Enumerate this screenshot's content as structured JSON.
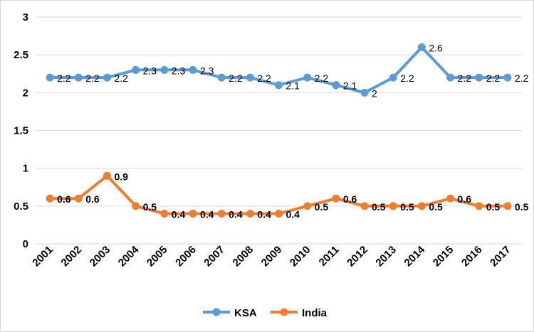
{
  "chart_data": {
    "type": "line",
    "title": "",
    "xlabel": "",
    "ylabel": "",
    "categories": [
      "2001",
      "2002",
      "2003",
      "2004",
      "2005",
      "2006",
      "2007",
      "2008",
      "2009",
      "2010",
      "2011",
      "2012",
      "2013",
      "2014",
      "2015",
      "2016",
      "2017"
    ],
    "ylim": [
      0,
      3
    ],
    "yticks": [
      "0",
      "0.5",
      "1",
      "1.5",
      "2",
      "2.5",
      "3"
    ],
    "grid": true,
    "legend": "bottom",
    "series": [
      {
        "name": "KSA",
        "color": "#5B9BD5",
        "values": [
          2.2,
          2.2,
          2.2,
          2.3,
          2.3,
          2.3,
          2.2,
          2.2,
          2.1,
          2.2,
          2.1,
          2,
          2.2,
          2.6,
          2.2,
          2.2,
          2.2
        ],
        "labels": [
          "2.2",
          "2.2",
          "2.2",
          "2.3",
          "2.3",
          "2.3",
          "2.2",
          "2.2",
          "2.1",
          "2.2",
          "2.1",
          "2",
          "2.2",
          "2.6",
          "2.2",
          "2.2",
          "2.2"
        ]
      },
      {
        "name": "India",
        "color": "#ED7D31",
        "values": [
          0.6,
          0.6,
          0.9,
          0.5,
          0.4,
          0.4,
          0.4,
          0.4,
          0.4,
          0.5,
          0.6,
          0.5,
          0.5,
          0.5,
          0.6,
          0.5,
          0.5
        ],
        "labels": [
          "0.6",
          "0.6",
          "0.9",
          "0.5",
          "0.4",
          "0.4",
          "0.4",
          "0.4",
          "0.4",
          "0.5",
          "0.6",
          "0.5",
          "0.5",
          "0.5",
          "0.6",
          "0.5",
          "0.5"
        ]
      }
    ]
  }
}
